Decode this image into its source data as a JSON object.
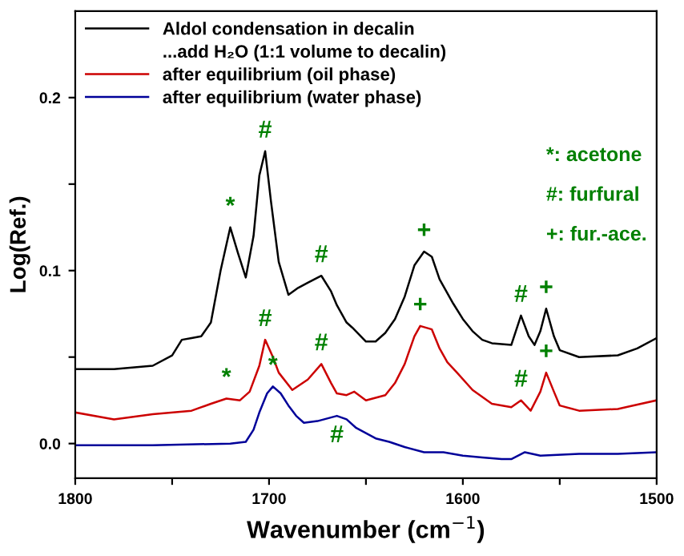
{
  "chart_data": {
    "type": "line",
    "xlabel": "Wavenumber (cm$^{−1}$)",
    "ylabel": "Log(Ref.)",
    "xlim": [
      1800,
      1500
    ],
    "ylim": [
      -0.02,
      0.25
    ],
    "xticks": [
      1800,
      {
        "value": 1750,
        "label": null
      },
      1700,
      {
        "value": 1650,
        "label": null
      },
      1600,
      {
        "value": 1550,
        "label": null
      },
      1500
    ],
    "yticks": [
      {
        "value": 0.0,
        "label": "0.0"
      },
      {
        "value": 0.05,
        "label": null
      },
      0.1,
      {
        "value": 0.15,
        "label": null
      },
      0.2
    ],
    "grid": false,
    "legend": "top left",
    "marker": "none",
    "line_style": "solid",
    "series": [
      {
        "name": "Aldol condensation in decalin",
        "color": "#000000",
        "x": [
          1800,
          1780,
          1760,
          1750,
          1745,
          1740,
          1735,
          1730,
          1725,
          1720,
          1716,
          1712,
          1708,
          1705,
          1702,
          1699,
          1695,
          1690,
          1685,
          1680,
          1673,
          1668,
          1665,
          1660,
          1657,
          1650,
          1645,
          1640,
          1635,
          1630,
          1625,
          1620,
          1616,
          1612,
          1605,
          1600,
          1595,
          1590,
          1585,
          1575,
          1570,
          1566,
          1563,
          1560,
          1557,
          1553,
          1550,
          1540,
          1520,
          1510,
          1500
        ],
        "values": [
          0.043,
          0.043,
          0.045,
          0.051,
          0.06,
          0.061,
          0.062,
          0.07,
          0.1,
          0.125,
          0.11,
          0.096,
          0.12,
          0.155,
          0.169,
          0.14,
          0.105,
          0.086,
          0.09,
          0.093,
          0.097,
          0.088,
          0.08,
          0.07,
          0.067,
          0.059,
          0.059,
          0.064,
          0.072,
          0.085,
          0.103,
          0.111,
          0.108,
          0.095,
          0.081,
          0.072,
          0.065,
          0.06,
          0.058,
          0.057,
          0.074,
          0.062,
          0.057,
          0.065,
          0.078,
          0.062,
          0.054,
          0.05,
          0.051,
          0.055,
          0.061
        ]
      },
      {
        "name": "after equilibrium (oil phase)",
        "color": "#cc0000",
        "x": [
          1800,
          1780,
          1760,
          1740,
          1730,
          1722,
          1715,
          1710,
          1705,
          1702,
          1698,
          1695,
          1688,
          1680,
          1673,
          1668,
          1665,
          1660,
          1656,
          1650,
          1640,
          1635,
          1630,
          1625,
          1622,
          1616,
          1612,
          1608,
          1603,
          1595,
          1585,
          1575,
          1570,
          1565,
          1560,
          1557,
          1553,
          1550,
          1540,
          1520,
          1500
        ],
        "values": [
          0.018,
          0.014,
          0.017,
          0.019,
          0.023,
          0.026,
          0.025,
          0.03,
          0.045,
          0.06,
          0.05,
          0.041,
          0.031,
          0.037,
          0.046,
          0.035,
          0.029,
          0.028,
          0.03,
          0.025,
          0.028,
          0.035,
          0.046,
          0.062,
          0.068,
          0.066,
          0.055,
          0.047,
          0.041,
          0.031,
          0.023,
          0.021,
          0.025,
          0.019,
          0.03,
          0.041,
          0.03,
          0.022,
          0.019,
          0.02,
          0.025
        ]
      },
      {
        "name": "after equilibrium (water phase)",
        "color": "#000099",
        "x": [
          1800,
          1760,
          1720,
          1712,
          1708,
          1705,
          1701,
          1698,
          1694,
          1690,
          1686,
          1682,
          1675,
          1665,
          1660,
          1655,
          1650,
          1645,
          1638,
          1630,
          1620,
          1610,
          1600,
          1590,
          1580,
          1575,
          1568,
          1560,
          1540,
          1520,
          1500
        ],
        "values": [
          -0.001,
          -0.001,
          0.0,
          0.001,
          0.008,
          0.018,
          0.029,
          0.033,
          0.029,
          0.022,
          0.016,
          0.012,
          0.013,
          0.016,
          0.014,
          0.009,
          0.006,
          0.003,
          0.001,
          -0.002,
          -0.005,
          -0.005,
          -0.007,
          -0.008,
          -0.009,
          -0.009,
          -0.005,
          -0.007,
          -0.006,
          -0.006,
          -0.005
        ]
      }
    ],
    "annotations": [
      "...add H₂O (1:1 volume to decalin)",
      "*: acetone",
      "#: furfural",
      "+: fur.-ace.",
      {
        "text": "*",
        "x": 1720,
        "y": 0.125
      },
      {
        "text": "#",
        "x": 1702,
        "y": 0.169
      },
      {
        "text": "#",
        "x": 1673,
        "y": 0.097
      },
      {
        "text": "+",
        "x": 1620,
        "y": 0.111
      },
      {
        "text": "#",
        "x": 1570,
        "y": 0.074
      },
      {
        "text": "+",
        "x": 1557,
        "y": 0.078
      },
      {
        "text": "*",
        "x": 1722,
        "y": 0.026
      },
      {
        "text": "#",
        "x": 1702,
        "y": 0.06
      },
      {
        "text": "#",
        "x": 1673,
        "y": 0.046
      },
      {
        "text": "+",
        "x": 1622,
        "y": 0.068
      },
      {
        "text": "#",
        "x": 1570,
        "y": 0.025
      },
      {
        "text": "+",
        "x": 1557,
        "y": 0.041
      },
      {
        "text": "*",
        "x": 1698,
        "y": 0.033
      },
      {
        "text": "#",
        "x": 1665,
        "y": 0.016
      }
    ]
  }
}
